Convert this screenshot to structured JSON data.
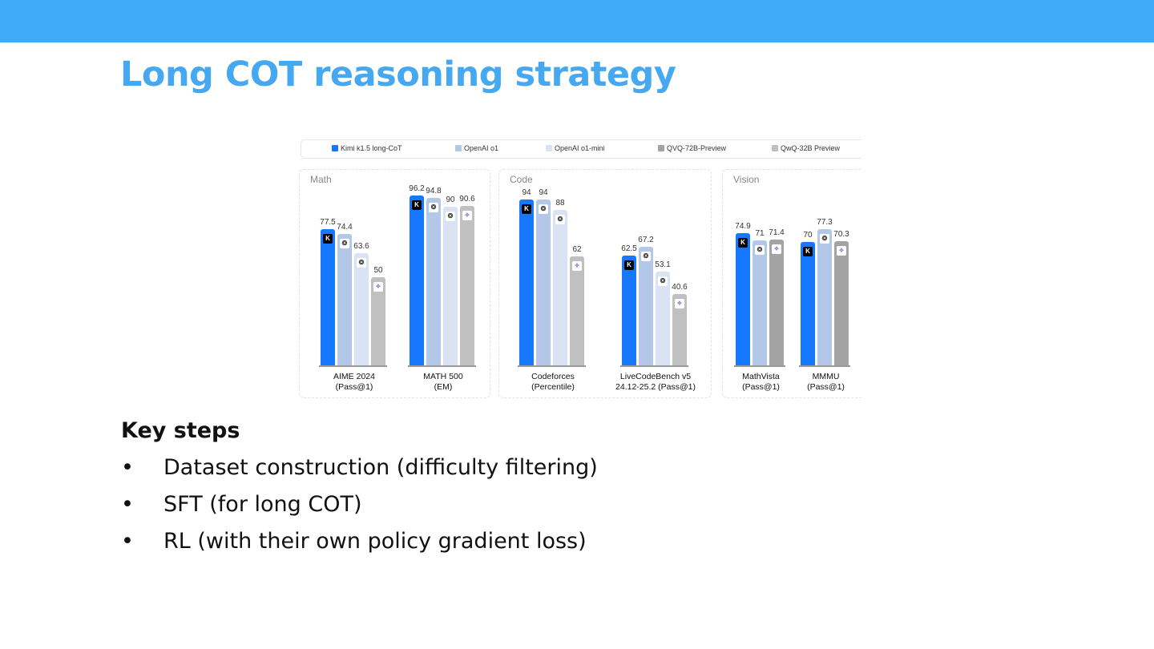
{
  "slide": {
    "title": "Long COT reasoning strategy",
    "section_heading": "Key steps",
    "bullets": [
      "Dataset construction (difficulty filtering)",
      "SFT (for long COT)",
      "RL (with their own policy gradient loss)"
    ],
    "bullet_symbol": "•",
    "colors": {
      "top_band": "#3faaf7",
      "title": "#45a8f0"
    }
  },
  "chart_data": {
    "type": "bar",
    "legend": [
      {
        "name": "Kimi k1.5 long-CoT",
        "color": "#1677ff",
        "icon": "kimi-k-icon"
      },
      {
        "name": "OpenAI o1",
        "color": "#b3c8e8",
        "icon": "openai-icon"
      },
      {
        "name": "OpenAI o1-mini",
        "color": "#d9e3f3",
        "icon": "openai-icon"
      },
      {
        "name": "QVQ-72B-Preview",
        "color": "#a3a3a3",
        "icon": "qwen-icon"
      },
      {
        "name": "QwQ-32B Preview",
        "color": "#c0c0c0",
        "icon": "qwen-icon"
      }
    ],
    "legend_placement": "top",
    "grid": false,
    "ylim": [
      0,
      100
    ],
    "panels": [
      {
        "title": "Math",
        "groups": [
          {
            "label": [
              "AIME 2024",
              "(Pass@1)"
            ],
            "series": [
              "Kimi k1.5 long-CoT",
              "OpenAI o1",
              "OpenAI o1-mini",
              "QwQ-32B Preview"
            ],
            "values": [
              77.5,
              74.4,
              63.6,
              50
            ]
          },
          {
            "label": [
              "MATH 500",
              "(EM)"
            ],
            "series": [
              "Kimi k1.5 long-CoT",
              "OpenAI o1",
              "OpenAI o1-mini",
              "QwQ-32B Preview"
            ],
            "values": [
              96.2,
              94.8,
              90,
              90.6
            ]
          }
        ]
      },
      {
        "title": "Code",
        "groups": [
          {
            "label": [
              "Codeforces",
              "(Percentile)"
            ],
            "series": [
              "Kimi k1.5 long-CoT",
              "OpenAI o1",
              "OpenAI o1-mini",
              "QwQ-32B Preview"
            ],
            "values": [
              94,
              94,
              88,
              62
            ]
          },
          {
            "label": [
              "LiveCodeBench v5",
              "24.12-25.2 (Pass@1)"
            ],
            "series": [
              "Kimi k1.5 long-CoT",
              "OpenAI o1",
              "OpenAI o1-mini",
              "QwQ-32B Preview"
            ],
            "values": [
              62.5,
              67.2,
              53.1,
              40.6
            ]
          }
        ]
      },
      {
        "title": "Vision",
        "groups": [
          {
            "label": [
              "MathVista",
              "(Pass@1)"
            ],
            "series": [
              "Kimi k1.5 long-CoT",
              "OpenAI o1",
              "QVQ-72B-Preview"
            ],
            "values": [
              74.9,
              71,
              71.4
            ]
          },
          {
            "label": [
              "MMMU",
              "(Pass@1)"
            ],
            "series": [
              "Kimi k1.5 long-CoT",
              "OpenAI o1",
              "QVQ-72B-Preview"
            ],
            "values": [
              70,
              77.3,
              70.3
            ]
          }
        ]
      }
    ]
  }
}
